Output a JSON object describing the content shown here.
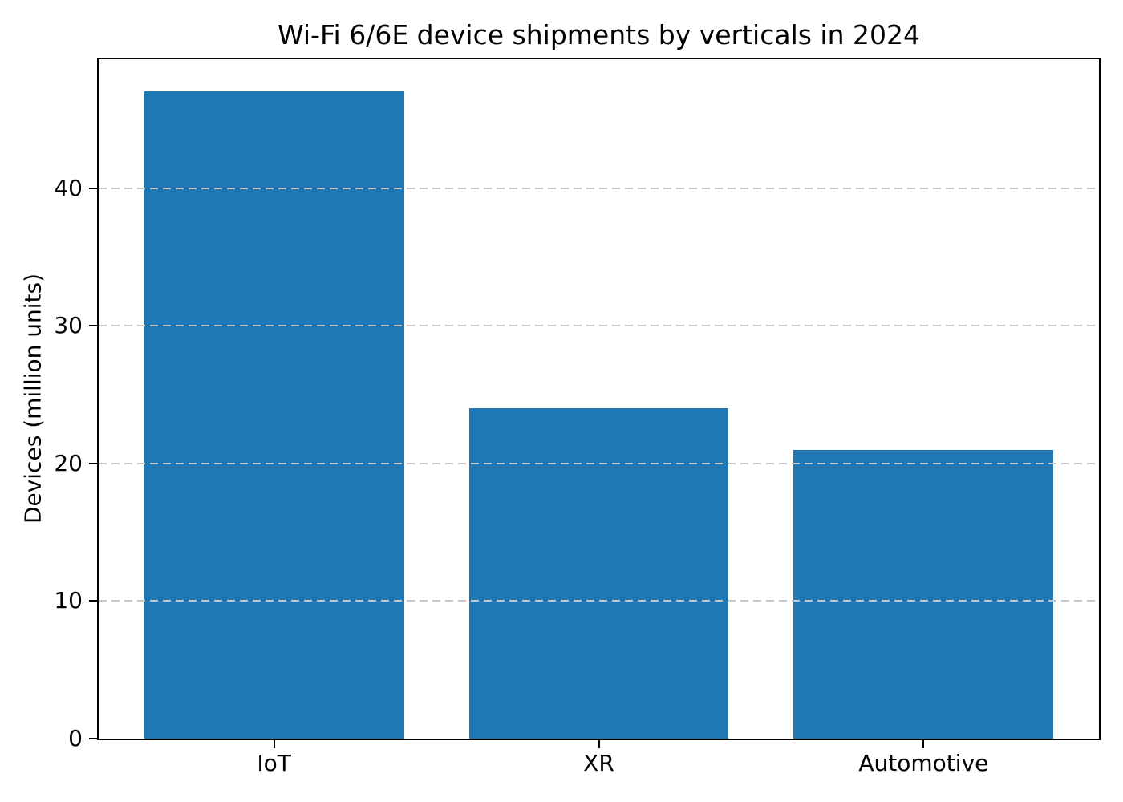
{
  "chart_data": {
    "type": "bar",
    "title": "Wi-Fi 6/6E device shipments by verticals in 2024",
    "categories": [
      "IoT",
      "XR",
      "Automotive"
    ],
    "values": [
      47,
      24,
      21
    ],
    "xlabel": "",
    "ylabel": "Devices (million units)",
    "ylim": [
      0,
      49.35
    ],
    "xlim": [
      -0.54,
      2.54
    ],
    "yticks": [
      0,
      10,
      20,
      30,
      40
    ],
    "bar_width": 0.8,
    "bar_color": "#1f77b4",
    "grid": {
      "axis": "y",
      "linestyle": "dashed",
      "color": "#c8c8c8",
      "drawn_over_bars": true
    },
    "legend_position": "none",
    "background_color": "#ffffff",
    "spine_color": "#000000"
  }
}
